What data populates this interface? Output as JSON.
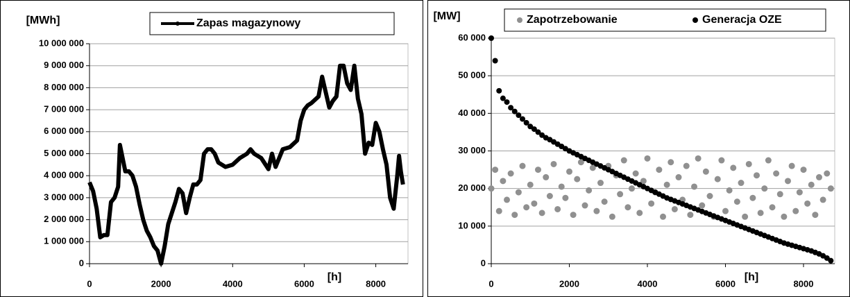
{
  "chart_data": [
    {
      "type": "line",
      "ylabel": "[MWh]",
      "xlabel": "[h]",
      "legend": "top",
      "grid": true,
      "xlim": [
        0,
        8900
      ],
      "xticks": [
        0,
        2000,
        4000,
        6000,
        8000
      ],
      "ylim": [
        0,
        10000000
      ],
      "yticks": [
        {
          "value": 0,
          "label": "0"
        },
        {
          "value": 1000000,
          "label": "1 000 000"
        },
        {
          "value": 2000000,
          "label": "2 000 000"
        },
        {
          "value": 3000000,
          "label": "3 000 000"
        },
        {
          "value": 4000000,
          "label": "4 000 000"
        },
        {
          "value": 5000000,
          "label": "5 000 000"
        },
        {
          "value": 6000000,
          "label": "6 000 000"
        },
        {
          "value": 7000000,
          "label": "7 000 000"
        },
        {
          "value": 8000000,
          "label": "8 000 000"
        },
        {
          "value": 9000000,
          "label": "9 000 000"
        },
        {
          "value": 10000000,
          "label": "10 000 000"
        }
      ],
      "x": [
        0,
        100,
        200,
        300,
        400,
        500,
        600,
        700,
        800,
        850,
        900,
        1000,
        1100,
        1200,
        1300,
        1400,
        1500,
        1600,
        1700,
        1800,
        1900,
        2000,
        2100,
        2200,
        2300,
        2400,
        2500,
        2600,
        2700,
        2800,
        2900,
        3000,
        3100,
        3200,
        3300,
        3400,
        3500,
        3600,
        3800,
        4000,
        4200,
        4400,
        4500,
        4600,
        4800,
        5000,
        5100,
        5200,
        5400,
        5600,
        5800,
        5900,
        6000,
        6100,
        6200,
        6400,
        6500,
        6600,
        6700,
        6800,
        6900,
        7000,
        7100,
        7200,
        7300,
        7400,
        7500,
        7600,
        7700,
        7800,
        7900,
        8000,
        8100,
        8200,
        8300,
        8400,
        8500,
        8600,
        8650,
        8700,
        8760
      ],
      "series": [
        {
          "name": "Zapas magazynowy",
          "color": "#000000",
          "values": [
            3700000,
            3300000,
            2500000,
            1200000,
            1300000,
            1300000,
            2800000,
            3000000,
            3500000,
            5400000,
            5000000,
            4200000,
            4200000,
            4000000,
            3500000,
            2700000,
            2000000,
            1500000,
            1200000,
            800000,
            600000,
            0,
            800000,
            1800000,
            2300000,
            2800000,
            3400000,
            3200000,
            2300000,
            3000000,
            3600000,
            3600000,
            3800000,
            5000000,
            5200000,
            5200000,
            5000000,
            4600000,
            4400000,
            4500000,
            4800000,
            5000000,
            5200000,
            5000000,
            4800000,
            4300000,
            5000000,
            4400000,
            5200000,
            5300000,
            5600000,
            6500000,
            7000000,
            7200000,
            7300000,
            7600000,
            8500000,
            7800000,
            7100000,
            7400000,
            7600000,
            9000000,
            9000000,
            8200000,
            7900000,
            9000000,
            7500000,
            6800000,
            5000000,
            5500000,
            5400000,
            6400000,
            6000000,
            5200000,
            4500000,
            3000000,
            2500000,
            4000000,
            4900000,
            4200000,
            3600000
          ]
        }
      ]
    },
    {
      "type": "scatter",
      "ylabel": "[MW]",
      "xlabel": "[h]",
      "legend": "top",
      "grid": true,
      "xlim": [
        0,
        8800
      ],
      "xticks": [
        0,
        2000,
        4000,
        6000,
        8000
      ],
      "ylim": [
        0,
        60000
      ],
      "yticks": [
        {
          "value": 0,
          "label": "0"
        },
        {
          "value": 10000,
          "label": "10 000"
        },
        {
          "value": 20000,
          "label": "20 000"
        },
        {
          "value": 30000,
          "label": "30 000"
        },
        {
          "value": 40000,
          "label": "40 000"
        },
        {
          "value": 50000,
          "label": "50 000"
        },
        {
          "value": 60000,
          "label": "60 000"
        }
      ],
      "x": [
        0,
        100,
        200,
        300,
        400,
        500,
        600,
        700,
        800,
        900,
        1000,
        1100,
        1200,
        1300,
        1400,
        1500,
        1600,
        1700,
        1800,
        1900,
        2000,
        2100,
        2200,
        2300,
        2400,
        2500,
        2600,
        2700,
        2800,
        2900,
        3000,
        3100,
        3200,
        3300,
        3400,
        3500,
        3600,
        3700,
        3800,
        3900,
        4000,
        4100,
        4200,
        4300,
        4400,
        4500,
        4600,
        4700,
        4800,
        4900,
        5000,
        5100,
        5200,
        5300,
        5400,
        5500,
        5600,
        5700,
        5800,
        5900,
        6000,
        6100,
        6200,
        6300,
        6400,
        6500,
        6600,
        6700,
        6800,
        6900,
        7000,
        7100,
        7200,
        7300,
        7400,
        7500,
        7600,
        7700,
        7800,
        7900,
        8000,
        8100,
        8200,
        8300,
        8400,
        8500,
        8600,
        8700
      ],
      "series": [
        {
          "name": "Zapotrzebowanie",
          "color": "#909090",
          "values": [
            20000,
            25000,
            14000,
            22000,
            17000,
            24000,
            13000,
            19000,
            26000,
            15000,
            21000,
            16000,
            25000,
            13500,
            23000,
            18000,
            26500,
            14500,
            20500,
            17500,
            24500,
            13000,
            22500,
            27000,
            15500,
            19500,
            25500,
            14000,
            21500,
            16500,
            26000,
            12500,
            23500,
            18500,
            27500,
            15000,
            20000,
            24000,
            13500,
            22000,
            28000,
            16000,
            19000,
            25000,
            12500,
            21000,
            27000,
            14500,
            23000,
            17000,
            26000,
            13000,
            20500,
            28000,
            15500,
            24500,
            18000,
            12500,
            22500,
            27500,
            14000,
            19500,
            25500,
            16500,
            21500,
            12500,
            26500,
            17500,
            23500,
            13500,
            20000,
            27500,
            15000,
            24000,
            18500,
            12500,
            22000,
            26000,
            14000,
            19000,
            25000,
            16000,
            21000,
            13000,
            23000,
            17000,
            24000,
            20000
          ]
        },
        {
          "name": "Generacja OZE",
          "color": "#000000",
          "values": [
            60000,
            54000,
            46000,
            44000,
            43000,
            41500,
            40500,
            39500,
            38500,
            37500,
            36500,
            35800,
            35000,
            34200,
            33500,
            33000,
            32400,
            31800,
            31200,
            30600,
            30000,
            29500,
            29000,
            28500,
            28000,
            27500,
            27000,
            26500,
            26000,
            25500,
            25000,
            24500,
            24000,
            23500,
            23000,
            22500,
            22000,
            21500,
            21000,
            20500,
            20000,
            19500,
            19000,
            18500,
            18000,
            17500,
            17100,
            16700,
            16300,
            15900,
            15500,
            15100,
            14700,
            14300,
            13900,
            13500,
            13100,
            12700,
            12300,
            11900,
            11500,
            11100,
            10700,
            10300,
            9900,
            9500,
            9100,
            8700,
            8300,
            7900,
            7500,
            7100,
            6700,
            6300,
            5900,
            5500,
            5200,
            4900,
            4600,
            4300,
            4000,
            3700,
            3400,
            3000,
            2600,
            2100,
            1500,
            800
          ]
        }
      ]
    }
  ]
}
